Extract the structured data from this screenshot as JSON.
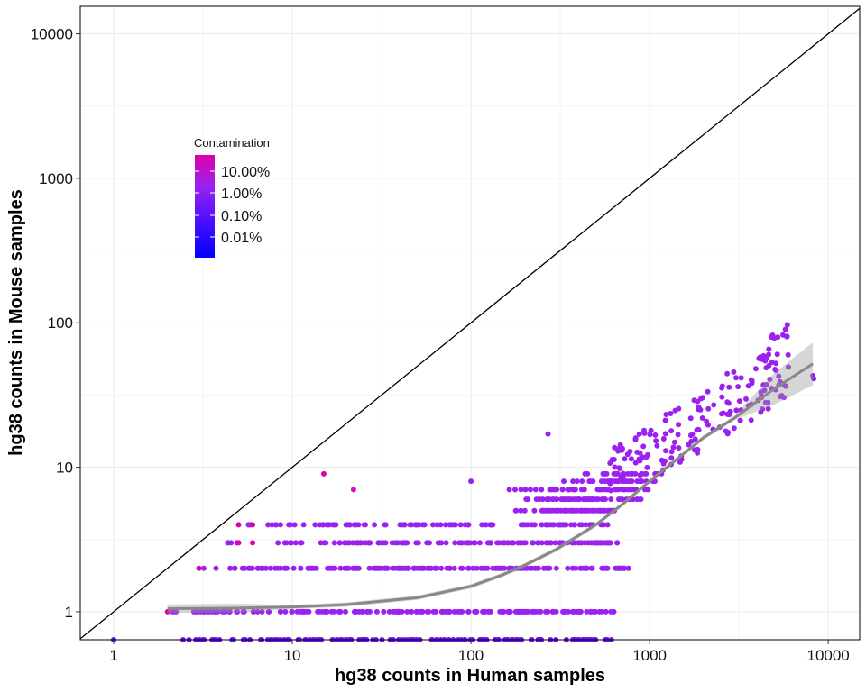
{
  "chart_data": {
    "type": "scatter",
    "title": "",
    "xlabel": "hg38 counts in Human samples",
    "ylabel": "hg38 counts in Mouse samples",
    "x_scale": "log10",
    "y_scale": "log10",
    "xlim": [
      0.65,
      15000
    ],
    "ylim": [
      0.64,
      15500
    ],
    "x_ticks": [
      1,
      10,
      100,
      1000,
      10000
    ],
    "x_tick_labels": [
      "1",
      "10",
      "100",
      "1000",
      "10000"
    ],
    "y_ticks": [
      1,
      10,
      100,
      1000,
      10000
    ],
    "y_tick_labels": [
      "1",
      "10",
      "100",
      "1000",
      "10000"
    ],
    "grid": true,
    "reference_line": "y = x",
    "legend": {
      "title": "Contamination",
      "placement": "top-left inside plot",
      "type": "colorbar",
      "labels": [
        "10.00%",
        "1.00%",
        "0.10%",
        "0.01%"
      ],
      "colors": [
        "#dd00aa",
        "#9b22ee",
        "#5511ff",
        "#0000ff"
      ]
    },
    "series": [
      {
        "type": "points",
        "rows": [
          {
            "y": 0.64,
            "x_range": [
              2,
              620
            ],
            "n": 150,
            "color": "#6a12f0"
          },
          {
            "y": 1,
            "x_range": [
              2,
              650
            ],
            "n": 190,
            "color": "#9b22ee"
          },
          {
            "y": 2,
            "x_range": [
              3,
              800
            ],
            "n": 170,
            "color": "#9b22ee"
          },
          {
            "y": 3,
            "x_range": [
              4,
              700
            ],
            "n": 140,
            "color": "#9b22ee"
          },
          {
            "y": 4,
            "x_range": [
              5,
              650
            ],
            "n": 110,
            "color": "#9b22ee"
          },
          {
            "y": 5,
            "x_range": [
              170,
              650
            ],
            "n": 60,
            "color": "#9b22ee"
          },
          {
            "y": 6,
            "x_range": [
              200,
              900
            ],
            "n": 60,
            "color": "#9b22ee"
          },
          {
            "y": 7,
            "x_range": [
              150,
              1000
            ],
            "n": 45,
            "color": "#9b22ee"
          },
          {
            "y": 8,
            "x_range": [
              300,
              1100
            ],
            "n": 30,
            "color": "#9b22ee"
          },
          {
            "y": 9,
            "x_range": [
              400,
              1200
            ],
            "n": 20,
            "color": "#9b22ee"
          }
        ],
        "extra_points": [
          {
            "x": 2,
            "y": 1,
            "color": "#dd00aa"
          },
          {
            "x": 3,
            "y": 2,
            "color": "#dd00aa"
          },
          {
            "x": 5,
            "y": 4,
            "color": "#dd00aa"
          },
          {
            "x": 6,
            "y": 4,
            "color": "#dd00aa"
          },
          {
            "x": 6,
            "y": 3,
            "color": "#dd00aa"
          },
          {
            "x": 5,
            "y": 3,
            "color": "#dd00aa"
          },
          {
            "x": 15,
            "y": 9,
            "color": "#dd00aa"
          },
          {
            "x": 22,
            "y": 7,
            "color": "#c811cc"
          },
          {
            "x": 1,
            "y": 0.64,
            "color": "#4a1aff"
          },
          {
            "x": 100,
            "y": 8,
            "color": "#9b22ee"
          },
          {
            "x": 270,
            "y": 17,
            "color": "#9b22ee"
          },
          {
            "x": 8200,
            "y": 43,
            "color": "#8a22ee"
          },
          {
            "x": 8300,
            "y": 41,
            "color": "#8a22ee"
          }
        ],
        "upper_cloud": {
          "x_range": [
            600,
            6000
          ],
          "n": 180,
          "color": "#9b22ee"
        }
      },
      {
        "type": "smooth",
        "color": "#888888",
        "x": [
          2,
          5,
          10,
          20,
          50,
          100,
          150,
          200,
          300,
          500,
          700,
          1000,
          1500,
          2000,
          3000,
          5000,
          8200
        ],
        "y": [
          1.05,
          1.06,
          1.08,
          1.12,
          1.25,
          1.5,
          1.8,
          2.1,
          2.7,
          4.0,
          5.5,
          8.0,
          12.0,
          16.0,
          22.0,
          35.0,
          52.0
        ]
      }
    ]
  }
}
